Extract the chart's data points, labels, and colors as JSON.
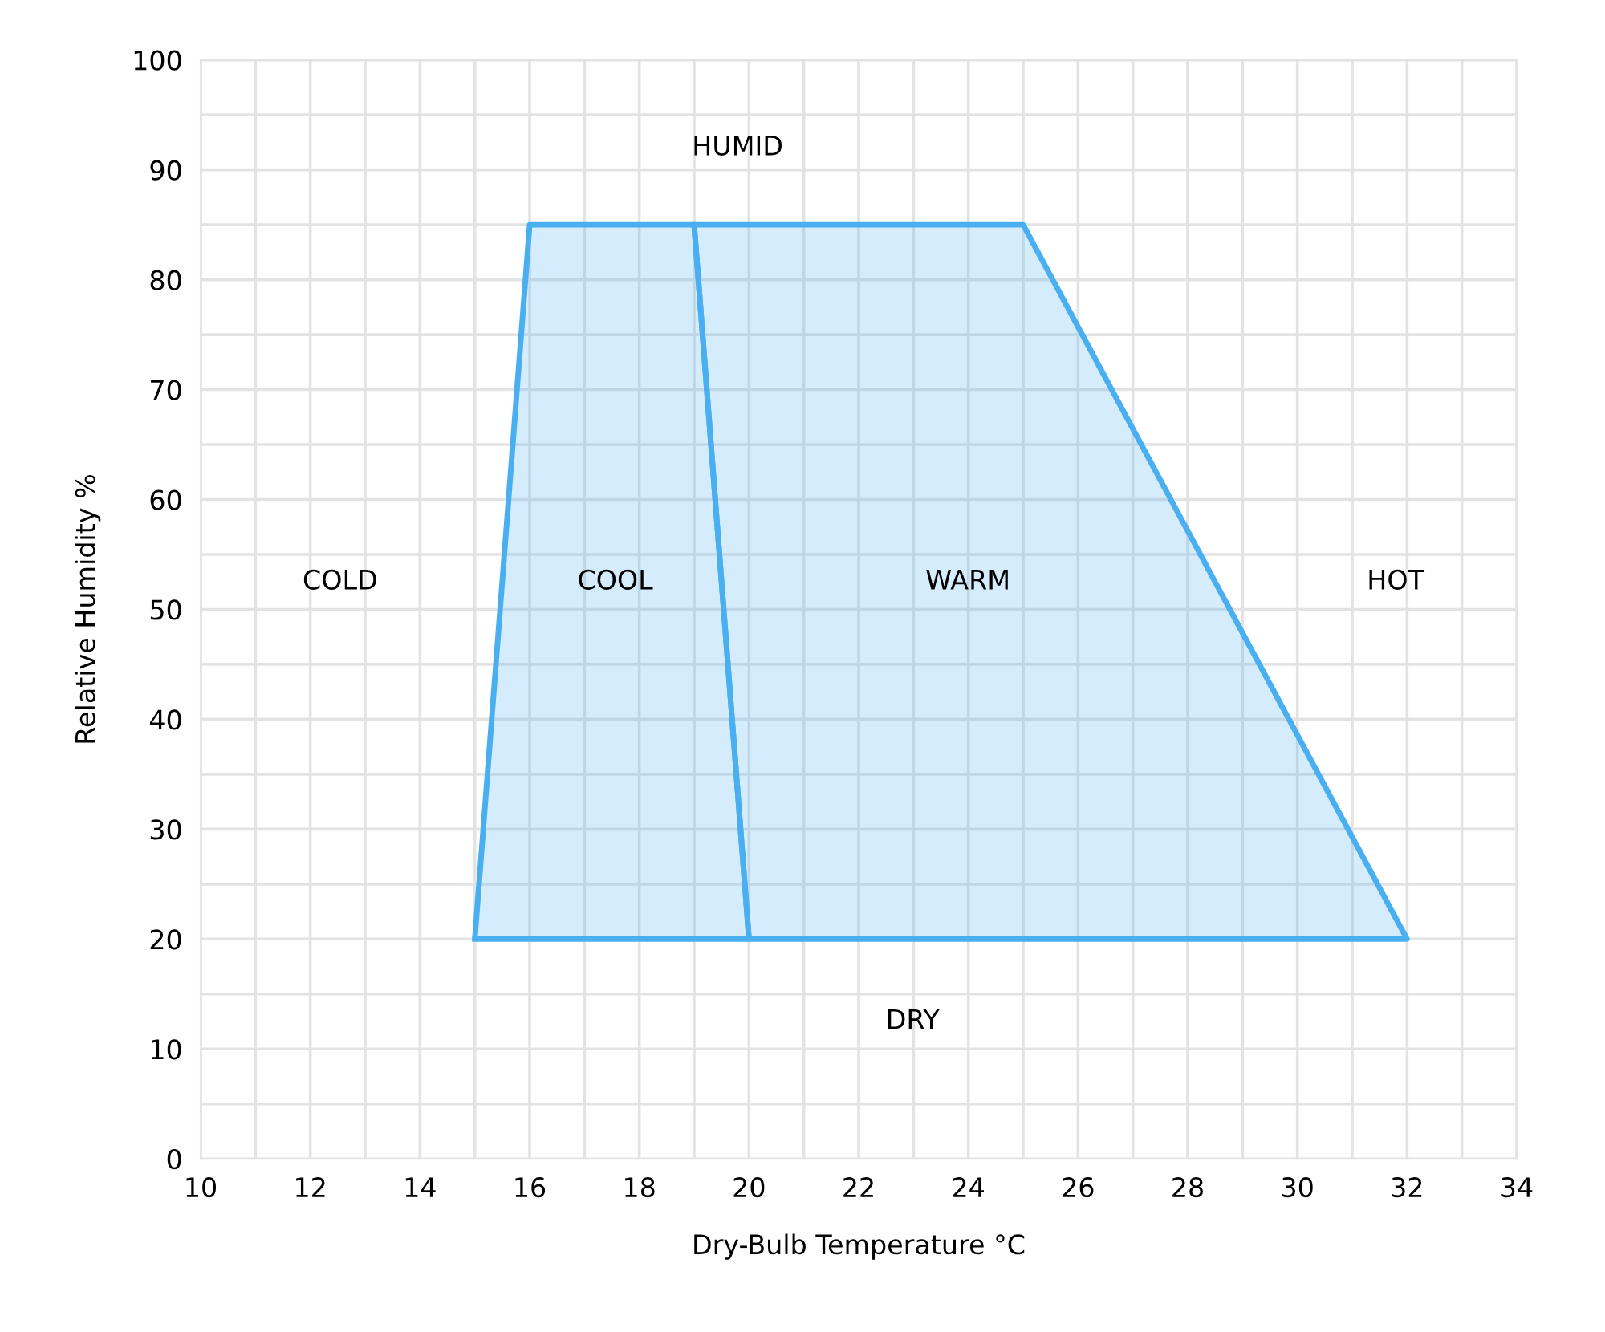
{
  "chart_data": {
    "type": "area",
    "xlabel": "Dry-Bulb Temperature °C",
    "ylabel": "Relative Humidity %",
    "series": [
      {
        "color": "#4aaff0",
        "x": [
          15,
          16,
          19,
          20,
          15
        ],
        "values": [
          20,
          85,
          85,
          20,
          20
        ]
      },
      {
        "color": "#4aaff0",
        "x": [
          19,
          25,
          32,
          20,
          19
        ],
        "values": [
          85,
          85,
          20,
          20,
          85
        ]
      }
    ],
    "xlim": [
      10,
      34
    ],
    "xticks": [
      10,
      {
        "value": 11,
        "label": null
      },
      12,
      {
        "value": 13,
        "label": null
      },
      14,
      {
        "value": 15,
        "label": null
      },
      16,
      {
        "value": 17,
        "label": null
      },
      18,
      {
        "value": 19,
        "label": null
      },
      20,
      {
        "value": 21,
        "label": null
      },
      22,
      {
        "value": 23,
        "label": null
      },
      24,
      {
        "value": 25,
        "label": null
      },
      26,
      {
        "value": 27,
        "label": null
      },
      28,
      {
        "value": 29,
        "label": null
      },
      30,
      {
        "value": 31,
        "label": null
      },
      32,
      {
        "value": 33,
        "label": null
      },
      34
    ],
    "ylim": [
      0,
      100
    ],
    "yticks": [
      0,
      {
        "value": 5,
        "label": null
      },
      10,
      {
        "value": 15,
        "label": null
      },
      20,
      {
        "value": 25,
        "label": null
      },
      30,
      {
        "value": 35,
        "label": null
      },
      40,
      {
        "value": 45,
        "label": null
      },
      50,
      {
        "value": 55,
        "label": null
      },
      60,
      {
        "value": 65,
        "label": null
      },
      70,
      {
        "value": 75,
        "label": null
      },
      80,
      {
        "value": 85,
        "label": null
      },
      90,
      {
        "value": 95,
        "label": null
      },
      100
    ],
    "grid": true,
    "annotations": [
      "COLD",
      "COOL",
      "WARM",
      "HOT",
      "HUMID",
      "DRY"
    ]
  }
}
